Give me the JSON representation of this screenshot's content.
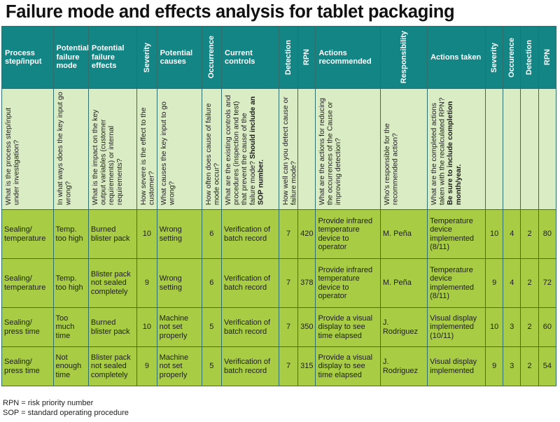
{
  "title": "Failure mode and effects analysis for tablet packaging",
  "headers": {
    "process_step": "Process step/input",
    "failure_mode": "Potential failure mode",
    "failure_effects": "Potential failure effects",
    "severity": "Severity",
    "potential_causes": "Potential causes",
    "occurrence": "Occurrence",
    "current_controls": "Current controls",
    "detection": "Detection",
    "rpn": "RPN",
    "actions_recommended": "Actions recommended",
    "responsibility": "Responsibility",
    "actions_taken": "Actions taken",
    "severity2": "Severity",
    "occurrence2": "Occurence",
    "detection2": "Detection",
    "rpn2": "RPN"
  },
  "questions": {
    "process_step": "What is the process step/input under investigation?",
    "failure_mode": "In what ways does the key input go wrong?",
    "failure_effects": "What is the impact on the key output variables (customer requirements) or internal requirements?",
    "severity": "How severe is the effect to the customer?",
    "potential_causes": "What causes the key input to go wrong?",
    "occurrence": "How often does cause of failure mode occur?",
    "current_controls_text": "What are the existing controls and procedures (inspection and test) that prevent the cause of the failure mode?",
    "current_controls_bold": "Should include an SOP number.",
    "detection": "How well can you detect cause or failure mode?",
    "actions_recommended": "What are the actions for reducing the occurrences of the Cause or improving detection?",
    "responsibility": "Who's responsible for the recommended action?",
    "actions_taken_text": "What are the completed actions taken with the recalculated RPN?",
    "actions_taken_bold": "Be sure to include completion month/year."
  },
  "rows": [
    {
      "process_step": "Sealing/ temperature",
      "failure_mode": "Temp. too high",
      "failure_effects": "Burned blister pack",
      "severity": "10",
      "potential_causes": "Wrong setting",
      "occurrence": "6",
      "current_controls": "Verification of batch record",
      "detection": "7",
      "rpn": "420",
      "actions_recommended": "Provide infrared temperature device to operator",
      "responsibility": "M. Peña",
      "actions_taken": "Temperature device implemented (8/11)",
      "severity2": "10",
      "occurrence2": "4",
      "detection2": "2",
      "rpn2": "80"
    },
    {
      "process_step": "Sealing/ temperature",
      "failure_mode": "Temp. too high",
      "failure_effects": "Blister pack not sealed completely",
      "severity": "9",
      "potential_causes": "Wrong setting",
      "occurrence": "6",
      "current_controls": "Verification of batch record",
      "detection": "7",
      "rpn": "378",
      "actions_recommended": "Provide infrared temperature device to operator",
      "responsibility": "M. Peña",
      "actions_taken": "Temperature device implemented (8/11)",
      "severity2": "9",
      "occurrence2": "4",
      "detection2": "2",
      "rpn2": "72"
    },
    {
      "process_step": "Sealing/ press time",
      "failure_mode": "Too much time",
      "failure_effects": "Burned blister pack",
      "severity": "10",
      "potential_causes": "Machine not set properly",
      "occurrence": "5",
      "current_controls": "Verification of batch record",
      "detection": "7",
      "rpn": "350",
      "actions_recommended": "Provide a visual display to see time elapsed",
      "responsibility": "J. Rodriguez",
      "actions_taken": "Visual display implemented (10/11)",
      "severity2": "10",
      "occurrence2": "3",
      "detection2": "2",
      "rpn2": "60"
    },
    {
      "process_step": "Sealing/ press time",
      "failure_mode": "Not enough time",
      "failure_effects": "Blister pack not sealed completely",
      "severity": "9",
      "potential_causes": "Machine not set properly",
      "occurrence": "5",
      "current_controls": "Verification of batch record",
      "detection": "7",
      "rpn": "315",
      "actions_recommended": "Provide a visual display to see time elapsed",
      "responsibility": "J. Rodriguez",
      "actions_taken": "Visual display implemented",
      "severity2": "9",
      "occurrence2": "3",
      "detection2": "2",
      "rpn2": "54"
    }
  ],
  "footnotes": [
    "RPN = risk priority number",
    "SOP = standard operating procedure"
  ]
}
